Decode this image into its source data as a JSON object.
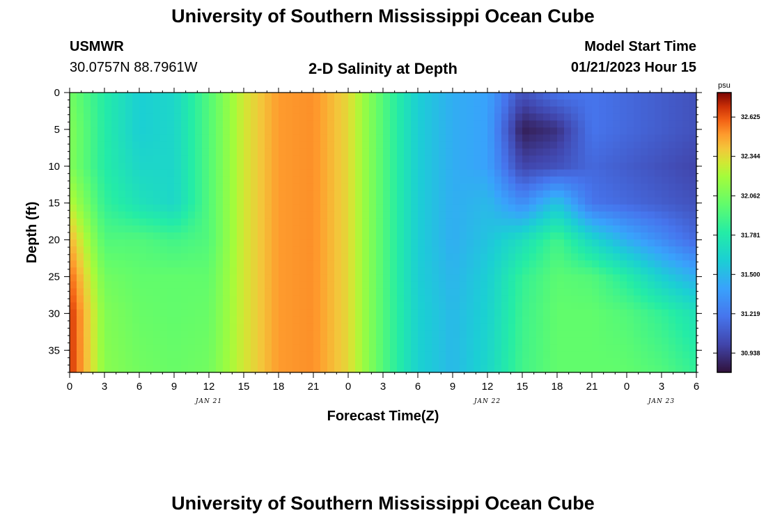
{
  "header": {
    "title": "University of Southern Mississippi Ocean Cube",
    "station": "USMWR",
    "coords": "30.0757N  88.7961W",
    "subtitle": "2-D Salinity at Depth",
    "model_label": "Model Start Time",
    "model_time": "01/21/2023 Hour 15"
  },
  "footer": {
    "title": "University of Southern Mississippi Ocean Cube"
  },
  "chart_data": {
    "type": "heatmap",
    "title": "2-D Salinity at Depth",
    "xlabel": "Forecast Time(Z)",
    "ylabel": "Depth (ft)",
    "units": "psu",
    "x_range": [
      0,
      54
    ],
    "x_ticks": [
      0,
      3,
      6,
      9,
      12,
      15,
      18,
      21,
      24,
      27,
      30,
      33,
      36,
      39,
      42,
      45,
      48,
      51,
      54
    ],
    "x_tick_labels": [
      "0",
      "3",
      "6",
      "9",
      "12",
      "15",
      "18",
      "21",
      "0",
      "3",
      "6",
      "9",
      "12",
      "15",
      "18",
      "21",
      "0",
      "3",
      "6"
    ],
    "date_labels": [
      {
        "x": 12,
        "text": "JAN 21"
      },
      {
        "x": 36,
        "text": "JAN 22"
      },
      {
        "x": 51,
        "text": "JAN 23"
      }
    ],
    "y_range": [
      0,
      38
    ],
    "y_inverted": true,
    "y_ticks": [
      0,
      5,
      10,
      15,
      20,
      25,
      30,
      35
    ],
    "colorbar": {
      "min": 30.8,
      "max": 32.8,
      "ticks": [
        "32.625",
        "32.344",
        "32.062",
        "31.781",
        "31.500",
        "31.219",
        "30.938"
      ]
    },
    "depths": [
      0,
      5,
      10,
      15,
      20,
      25,
      30,
      38
    ],
    "times": [
      0,
      3,
      6,
      9,
      12,
      15,
      18,
      21,
      24,
      27,
      30,
      33,
      36,
      39,
      42,
      45,
      48,
      51,
      54
    ],
    "salinity": [
      [
        32.05,
        31.8,
        31.6,
        31.65,
        31.95,
        32.3,
        32.5,
        32.52,
        32.35,
        31.95,
        31.6,
        31.45,
        31.4,
        31.05,
        31.2,
        31.2,
        31.15,
        31.1,
        31.05
      ],
      [
        32.1,
        31.8,
        31.6,
        31.65,
        31.95,
        32.3,
        32.5,
        32.52,
        32.35,
        31.95,
        31.6,
        31.45,
        31.4,
        30.85,
        30.92,
        31.2,
        31.15,
        31.1,
        31.05
      ],
      [
        32.1,
        31.8,
        31.65,
        31.65,
        31.95,
        32.3,
        32.5,
        32.52,
        32.35,
        31.95,
        31.6,
        31.45,
        31.4,
        31.0,
        31.05,
        31.15,
        31.1,
        31.05,
        31.0
      ],
      [
        32.25,
        31.85,
        31.72,
        31.65,
        31.95,
        32.3,
        32.5,
        32.52,
        32.35,
        31.95,
        31.6,
        31.45,
        31.5,
        31.3,
        31.55,
        31.2,
        31.15,
        31.1,
        31.05
      ],
      [
        32.45,
        31.95,
        31.95,
        31.9,
        31.95,
        32.3,
        32.5,
        32.52,
        32.35,
        31.95,
        31.6,
        31.45,
        31.55,
        31.7,
        31.9,
        31.65,
        31.45,
        31.3,
        31.15
      ],
      [
        32.6,
        32.05,
        32.0,
        32.0,
        32.0,
        32.3,
        32.5,
        32.52,
        32.35,
        31.95,
        31.6,
        31.48,
        31.6,
        31.85,
        31.98,
        31.95,
        31.8,
        31.6,
        31.45
      ],
      [
        32.7,
        32.1,
        32.02,
        32.0,
        32.02,
        32.3,
        32.5,
        32.52,
        32.35,
        31.95,
        31.62,
        31.5,
        31.62,
        31.88,
        32.0,
        32.0,
        31.95,
        31.85,
        31.72
      ],
      [
        32.7,
        32.12,
        32.05,
        32.02,
        32.05,
        32.3,
        32.5,
        32.52,
        32.35,
        31.95,
        31.62,
        31.5,
        31.65,
        31.9,
        32.0,
        32.0,
        32.0,
        31.95,
        31.85
      ]
    ]
  }
}
